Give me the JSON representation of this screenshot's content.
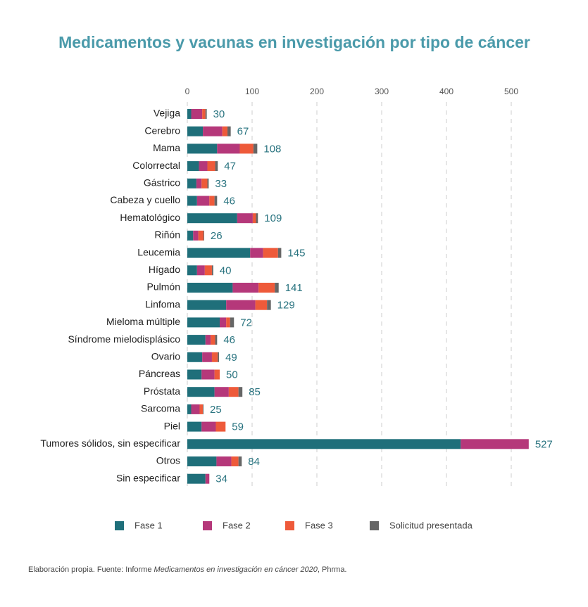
{
  "chart_data": {
    "type": "stacked-barh",
    "title": "Medicamentos y vacunas en investigación por tipo de cáncer",
    "categories": [
      "Vejiga",
      "Cerebro",
      "Mama",
      "Colorrectal",
      "Gástrico",
      "Cabeza y cuello",
      "Hematológico",
      "Riñón",
      "Leucemia",
      "Hígado",
      "Pulmón",
      "Linfoma",
      "Mieloma múltiple",
      "Síndrome mielodisplásico",
      "Ovario",
      "Páncreas",
      "Próstata",
      "Sarcoma",
      "Piel",
      "Tumores sólidos, sin especificar",
      "Otros",
      "Sin especificar"
    ],
    "series": [
      {
        "name": "Fase 1",
        "color": "#1f6f7a",
        "values": [
          6,
          24,
          46,
          18,
          14,
          15,
          77,
          9,
          97,
          15,
          70,
          60,
          50,
          28,
          23,
          22,
          42,
          6,
          22,
          422,
          45,
          28
        ]
      },
      {
        "name": "Fase 2",
        "color": "#b5387a",
        "values": [
          17,
          30,
          35,
          13,
          8,
          19,
          24,
          8,
          20,
          12,
          40,
          45,
          10,
          8,
          15,
          20,
          22,
          13,
          22,
          105,
          23,
          6
        ]
      },
      {
        "name": "Fase 3",
        "color": "#ee5a3a",
        "values": [
          5,
          8,
          21,
          12,
          9,
          8,
          5,
          8,
          23,
          11,
          25,
          18,
          6,
          7,
          9,
          8,
          15,
          5,
          15,
          0,
          11,
          0
        ]
      },
      {
        "name": "Solicitud presentada",
        "color": "#666666",
        "values": [
          2,
          5,
          6,
          4,
          2,
          4,
          3,
          1,
          5,
          2,
          6,
          6,
          6,
          3,
          2,
          0,
          6,
          1,
          0,
          0,
          5,
          0
        ]
      }
    ],
    "totals": [
      30,
      67,
      108,
      47,
      33,
      46,
      109,
      26,
      145,
      40,
      141,
      129,
      72,
      46,
      49,
      50,
      85,
      25,
      59,
      527,
      84,
      34
    ],
    "xlim": [
      0,
      540
    ],
    "xticks": [
      0,
      100,
      200,
      300,
      400,
      500
    ],
    "grid": true,
    "note": [
      "Elaboración propia. Fuente: Informe ",
      "Medicamentos en investigación en cáncer 2020",
      ", Phrma."
    ]
  }
}
